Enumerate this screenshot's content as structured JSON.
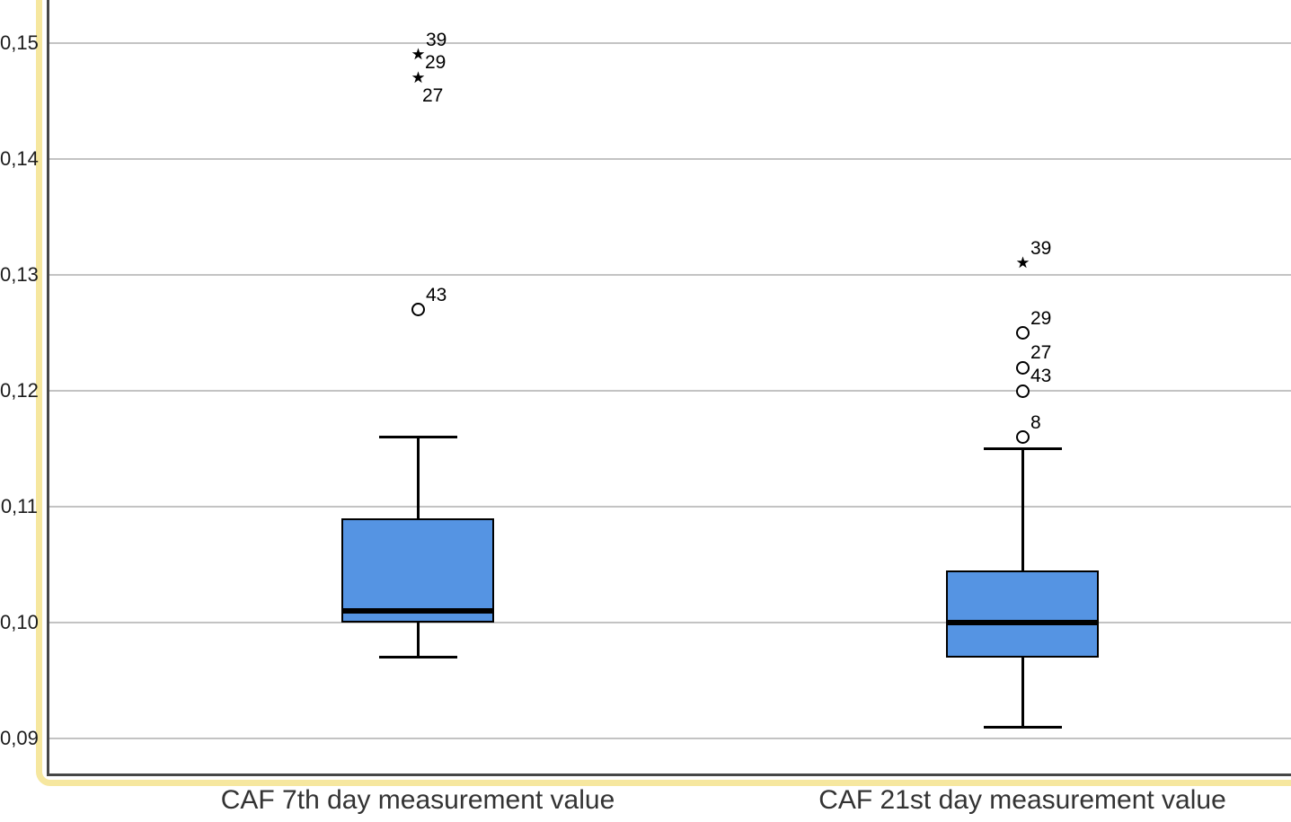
{
  "chart_data": {
    "type": "boxplot",
    "title": "",
    "xlabel": "",
    "ylabel": "",
    "grid": "horizontal",
    "legend": "none",
    "decimal_separator": ",",
    "ylim": [
      0.0865,
      0.1535
    ],
    "y_ticks": [
      {
        "label": "0,15",
        "value": 0.15
      },
      {
        "label": "0,14",
        "value": 0.14
      },
      {
        "label": "0,13",
        "value": 0.13
      },
      {
        "label": "0,12",
        "value": 0.12
      },
      {
        "label": "0,11",
        "value": 0.11
      },
      {
        "label": "0,10",
        "value": 0.1
      },
      {
        "label": "0,09",
        "value": 0.09
      }
    ],
    "colors": {
      "box_fill": "#5594E3",
      "box_border": "#000000",
      "median_line": "#000000",
      "whisker": "#000000",
      "gridline": "#c3c3c3",
      "axis_frame": "#464646",
      "selection_highlight": "#F6E79F"
    },
    "series": [
      {
        "category": "CAF 7th day measurement value",
        "whisker_low": 0.097,
        "q1": 0.1,
        "median": 0.101,
        "q3": 0.109,
        "whisker_high": 0.116,
        "outliers": [
          {
            "value": 0.149,
            "marker": "star",
            "labels": [
              {
                "text": "39",
                "pos": "above-right"
              },
              {
                "text": "29",
                "pos": "right"
              }
            ]
          },
          {
            "value": 0.147,
            "marker": "star",
            "labels": [
              {
                "text": "27",
                "pos": "below-right"
              }
            ]
          },
          {
            "value": 0.127,
            "marker": "circle",
            "labels": [
              {
                "text": "43",
                "pos": "above-right"
              }
            ]
          }
        ]
      },
      {
        "category": "CAF 21st day measurement value",
        "whisker_low": 0.091,
        "q1": 0.097,
        "median": 0.1,
        "q3": 0.1045,
        "whisker_high": 0.115,
        "outliers": [
          {
            "value": 0.131,
            "marker": "star",
            "labels": [
              {
                "text": "39",
                "pos": "above-right"
              }
            ]
          },
          {
            "value": 0.125,
            "marker": "circle",
            "labels": [
              {
                "text": "29",
                "pos": "above-right"
              }
            ]
          },
          {
            "value": 0.122,
            "marker": "circle",
            "labels": [
              {
                "text": "27",
                "pos": "above-right"
              }
            ]
          },
          {
            "value": 0.12,
            "marker": "circle",
            "labels": [
              {
                "text": "43",
                "pos": "above-right"
              }
            ]
          },
          {
            "value": 0.116,
            "marker": "circle",
            "labels": [
              {
                "text": "8",
                "pos": "above-right"
              }
            ]
          }
        ]
      }
    ]
  }
}
